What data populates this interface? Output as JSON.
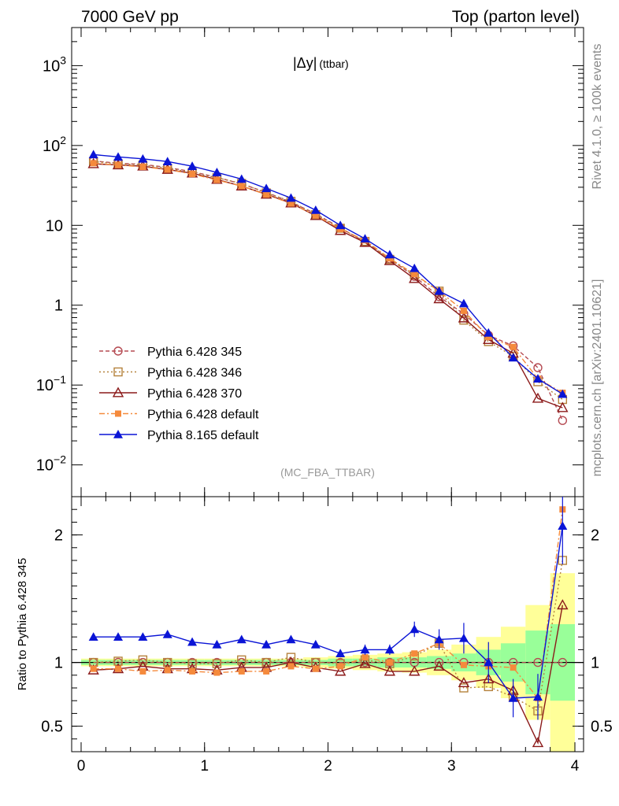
{
  "header": {
    "left": "7000 GeV pp",
    "right": "Top (parton level)",
    "side_top": "Rivet 4.1.0, ≥ 100k events",
    "side_bottom": "mcplots.cern.ch [arXiv:2401.10621]",
    "plot_title": "|Δy|",
    "plot_title_sub": "(ttbar)",
    "analysis_tag": "(MC_FBA_TTBAR)"
  },
  "chart_data": {
    "type": "line",
    "title": "|Δy| (ttbar)",
    "xlabel": "",
    "ylabel_ratio": "Ratio to Pythia 6.428 345",
    "xlim": [
      0,
      4
    ],
    "ylim_main": [
      0.004,
      3000
    ],
    "ylim_ratio": [
      0.3,
      2.3
    ],
    "yscale_main": "log",
    "x_ticks": [
      "0",
      "1",
      "2",
      "3",
      "4"
    ],
    "y_ticks_main": [
      {
        "value": 0.01,
        "base": "10",
        "exp": "−2"
      },
      {
        "value": 0.1,
        "base": "10",
        "exp": "−1"
      },
      {
        "value": 1,
        "base": "1",
        "exp": ""
      },
      {
        "value": 10,
        "base": "10",
        "exp": ""
      },
      {
        "value": 100,
        "base": "10",
        "exp": "2"
      },
      {
        "value": 1000,
        "base": "10",
        "exp": "3"
      }
    ],
    "y_ticks_ratio": [
      "0.5",
      "1",
      "2"
    ],
    "x": [
      0.1,
      0.3,
      0.5,
      0.7,
      0.9,
      1.1,
      1.3,
      1.5,
      1.7,
      1.9,
      2.1,
      2.3,
      2.5,
      2.7,
      2.9,
      3.1,
      3.3,
      3.5,
      3.7,
      3.9
    ],
    "legend_position": "bottom-left",
    "series": [
      {
        "name": "Pythia 6.428 345",
        "color": "#b54a52",
        "marker": "open-circle",
        "dash": "5,3",
        "values": [
          64,
          60,
          58,
          53,
          47,
          40,
          33,
          26,
          19.5,
          14,
          9.3,
          6.2,
          3.8,
          2.3,
          1.28,
          0.78,
          0.42,
          0.31,
          0.165,
          0.036
        ],
        "ratio": [
          1,
          1,
          1,
          1,
          1,
          1,
          1,
          1,
          1,
          1,
          1,
          1,
          1,
          1,
          1,
          1,
          1,
          1,
          1,
          1
        ]
      },
      {
        "name": "Pythia 6.428 346",
        "color": "#b5823c",
        "marker": "open-square",
        "dash": "2,3",
        "values": [
          63,
          59,
          57,
          52,
          46,
          39.5,
          33.5,
          25.5,
          20,
          13.6,
          9.2,
          6.3,
          3.75,
          2.4,
          1.5,
          0.65,
          0.35,
          0.23,
          0.11,
          0.066
        ],
        "ratio": [
          1.0,
          1.01,
          1.02,
          1.0,
          0.99,
          0.99,
          1.02,
          1.0,
          1.04,
          1.0,
          0.99,
          1.02,
          0.99,
          1.05,
          1.15,
          0.8,
          0.81,
          0.73,
          0.62,
          1.8
        ]
      },
      {
        "name": "Pythia 6.428 370",
        "color": "#8b1a1a",
        "marker": "open-triangle",
        "dash": "",
        "values": [
          59,
          57,
          55,
          50,
          45,
          37.5,
          31,
          24.5,
          19,
          13.2,
          8.6,
          6.1,
          3.6,
          2.15,
          1.2,
          0.69,
          0.37,
          0.25,
          0.068,
          0.052
        ],
        "ratio": [
          0.94,
          0.95,
          0.97,
          0.95,
          0.95,
          0.94,
          0.96,
          0.96,
          1.0,
          0.96,
          0.93,
          0.99,
          0.93,
          0.93,
          0.97,
          0.84,
          0.87,
          0.78,
          0.37,
          1.45
        ]
      },
      {
        "name": "Pythia 6.428 default",
        "color": "#f58a3c",
        "marker": "filled-square",
        "dash": "7,3,2,3",
        "values": [
          60,
          57,
          54,
          50,
          44,
          37,
          31,
          24.3,
          18.8,
          13.3,
          9,
          6.5,
          3.85,
          2.45,
          1.5,
          0.85,
          0.4,
          0.3,
          0.12,
          0.08
        ],
        "ratio": [
          0.95,
          0.95,
          0.93,
          0.94,
          0.93,
          0.92,
          0.93,
          0.93,
          0.97,
          0.95,
          0.97,
          1.04,
          1.0,
          1.07,
          1.15,
          0.98,
          0.97,
          0.96,
          0.72,
          2.2
        ]
      },
      {
        "name": "Pythia 8.165 default",
        "color": "#0a14d6",
        "marker": "filled-triangle",
        "dash": "",
        "values": [
          77,
          72,
          68,
          63,
          55,
          46,
          38,
          29,
          22,
          15.5,
          10,
          6.8,
          4.3,
          2.9,
          1.5,
          1.05,
          0.45,
          0.22,
          0.12,
          0.077
        ],
        "ratio": [
          1.2,
          1.2,
          1.2,
          1.22,
          1.16,
          1.14,
          1.18,
          1.14,
          1.18,
          1.14,
          1.07,
          1.1,
          1.1,
          1.26,
          1.18,
          1.19,
          1.0,
          0.72,
          0.73,
          2.07
        ]
      }
    ],
    "ratio_errors": {
      "Pythia 8.165 default": [
        0,
        0,
        0,
        0,
        0,
        0,
        0,
        0,
        0,
        0,
        0.03,
        0.04,
        0.04,
        0.06,
        0.08,
        0.12,
        0.16,
        0.15,
        0.18,
        0.3
      ]
    },
    "ratio_bands": {
      "green_halfwidth": [
        0.02,
        0.02,
        0.02,
        0.02,
        0.02,
        0.02,
        0.02,
        0.02,
        0.02,
        0.02,
        0.03,
        0.03,
        0.04,
        0.04,
        0.05,
        0.07,
        0.1,
        0.15,
        0.25,
        0.3
      ],
      "yellow_halfwidth": [
        0.03,
        0.03,
        0.03,
        0.03,
        0.03,
        0.03,
        0.03,
        0.03,
        0.03,
        0.04,
        0.05,
        0.06,
        0.07,
        0.08,
        0.1,
        0.14,
        0.2,
        0.28,
        0.45,
        0.7
      ]
    }
  }
}
